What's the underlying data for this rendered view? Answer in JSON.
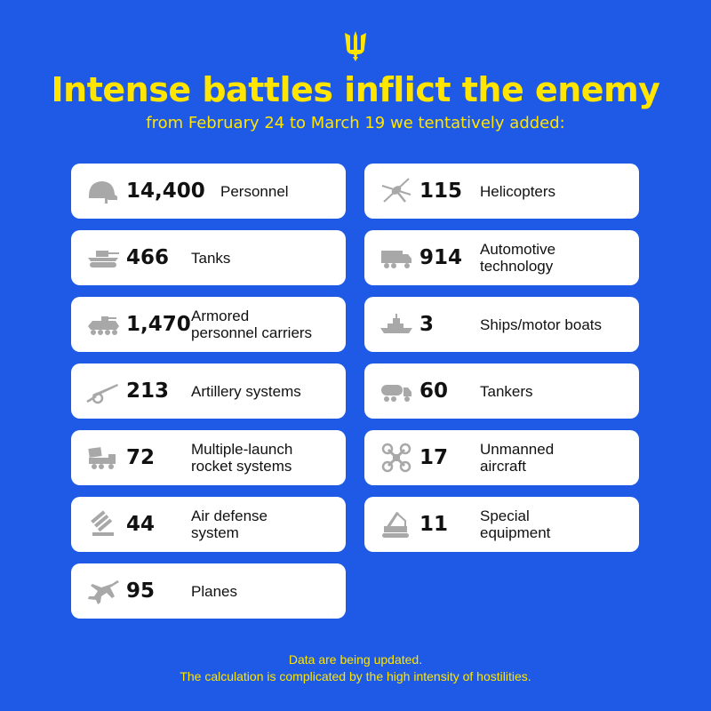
{
  "header": {
    "title": "Intense battles inflict the enemy",
    "subtitle": "from February 24 to March 19 we tentatively added:"
  },
  "left": [
    {
      "icon": "helmet-icon",
      "value": "14,400",
      "label": "Personnel"
    },
    {
      "icon": "tank-icon",
      "value": "466",
      "label": "Tanks"
    },
    {
      "icon": "apc-icon",
      "value": "1,470",
      "label": "Armored\npersonnel carriers"
    },
    {
      "icon": "artillery-icon",
      "value": "213",
      "label": "Artillery systems"
    },
    {
      "icon": "rocket-launcher-icon",
      "value": "72",
      "label": "Multiple-launch\nrocket systems"
    },
    {
      "icon": "air-defense-icon",
      "value": "44",
      "label": "Air defense\nsystem"
    },
    {
      "icon": "plane-icon",
      "value": "95",
      "label": "Planes"
    }
  ],
  "right": [
    {
      "icon": "helicopter-icon",
      "value": "115",
      "label": "Helicopters"
    },
    {
      "icon": "truck-icon",
      "value": "914",
      "label": "Automotive\ntechnology"
    },
    {
      "icon": "ship-icon",
      "value": "3",
      "label": "Ships/motor boats"
    },
    {
      "icon": "tanker-icon",
      "value": "60",
      "label": "Tankers"
    },
    {
      "icon": "drone-icon",
      "value": "17",
      "label": "Unmanned\naircraft"
    },
    {
      "icon": "crane-icon",
      "value": "11",
      "label": "Special\nequipment"
    }
  ],
  "footer": {
    "line1": "Data are being updated.",
    "line2": "The calculation is complicated by the high intensity of hostilities."
  },
  "colors": {
    "background": "#1f5ae6",
    "accent": "#ffe500",
    "icon": "#a8a8a8"
  }
}
